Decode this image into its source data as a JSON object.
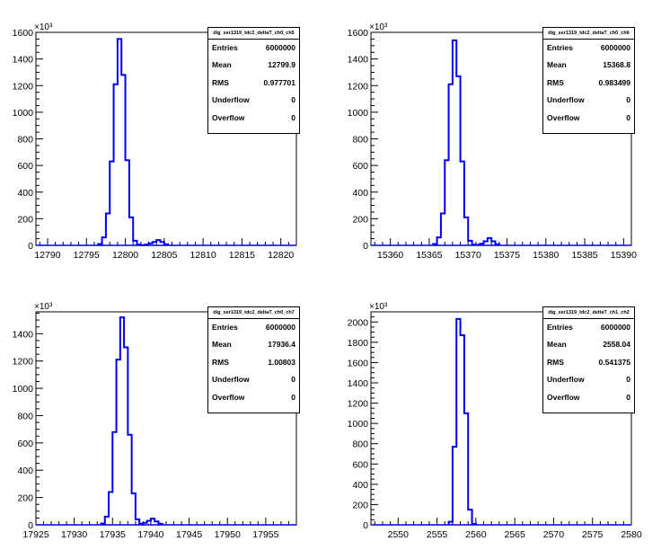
{
  "chart_data": [
    {
      "type": "histogram",
      "multiplier": "×10³",
      "x_range": [
        12788.5,
        12822
      ],
      "bin_width": 0.5,
      "y_range": [
        0,
        1600
      ],
      "x_ticks": [
        "12790",
        "12795",
        "12800",
        "12805",
        "12810",
        "12815",
        "12820"
      ],
      "x_tick_values": [
        12790,
        12795,
        12800,
        12805,
        12810,
        12815,
        12820
      ],
      "y_ticks": [
        "0",
        "200",
        "400",
        "600",
        "800",
        "1000",
        "1200",
        "1400",
        "1600"
      ],
      "y_tick_values": [
        0,
        200,
        400,
        600,
        800,
        1000,
        1200,
        1400,
        1600
      ],
      "bins": [
        [
          12796.5,
          10
        ],
        [
          12797,
          60
        ],
        [
          12797.5,
          240
        ],
        [
          12798,
          630
        ],
        [
          12798.5,
          1210
        ],
        [
          12799,
          1550
        ],
        [
          12799.5,
          1280
        ],
        [
          12800,
          640
        ],
        [
          12800.5,
          210
        ],
        [
          12801,
          35
        ],
        [
          12801.5,
          5
        ],
        [
          12802,
          2
        ],
        [
          12802.5,
          5
        ],
        [
          12803,
          15
        ],
        [
          12803.5,
          25
        ],
        [
          12804,
          40
        ],
        [
          12804.5,
          25
        ],
        [
          12805,
          8
        ]
      ],
      "stats": {
        "title": "dig_ser1319_tdc2_deltaT_ch0_ch5",
        "entries": "6000000",
        "mean": "12799.9",
        "rms": "0.977701",
        "underflow": "0",
        "overflow": "0"
      }
    },
    {
      "type": "histogram",
      "multiplier": "×10³",
      "x_range": [
        15357.5,
        15391
      ],
      "bin_width": 0.5,
      "y_range": [
        0,
        1600
      ],
      "x_ticks": [
        "15360",
        "15365",
        "15370",
        "15375",
        "15380",
        "15385",
        "15390"
      ],
      "x_tick_values": [
        15360,
        15365,
        15370,
        15375,
        15380,
        15385,
        15390
      ],
      "y_ticks": [
        "0",
        "200",
        "400",
        "600",
        "800",
        "1000",
        "1200",
        "1400",
        "1600"
      ],
      "y_tick_values": [
        0,
        200,
        400,
        600,
        800,
        1000,
        1200,
        1400,
        1600
      ],
      "bins": [
        [
          15365.5,
          10
        ],
        [
          15366,
          60
        ],
        [
          15366.5,
          240
        ],
        [
          15367,
          640
        ],
        [
          15367.5,
          1210
        ],
        [
          15368,
          1540
        ],
        [
          15368.5,
          1270
        ],
        [
          15369,
          630
        ],
        [
          15369.5,
          210
        ],
        [
          15370,
          35
        ],
        [
          15370.5,
          5
        ],
        [
          15371,
          3
        ],
        [
          15371.5,
          12
        ],
        [
          15372,
          30
        ],
        [
          15372.5,
          55
        ],
        [
          15373,
          30
        ],
        [
          15373.5,
          8
        ]
      ],
      "stats": {
        "title": "dig_ser1319_tdc2_deltaT_ch0_ch6",
        "entries": "6000000",
        "mean": "15368.8",
        "rms": "0.983499",
        "underflow": "0",
        "overflow": "0"
      }
    },
    {
      "type": "histogram",
      "multiplier": "×10³",
      "x_range": [
        17925,
        17959
      ],
      "bin_width": 0.5,
      "y_range": [
        0,
        1560
      ],
      "x_ticks": [
        "17925",
        "17930",
        "17935",
        "17940",
        "17945",
        "17950",
        "17955"
      ],
      "x_tick_values": [
        17925,
        17930,
        17935,
        17940,
        17945,
        17950,
        17955
      ],
      "y_ticks": [
        "0",
        "200",
        "400",
        "600",
        "800",
        "1000",
        "1200",
        "1400"
      ],
      "y_tick_values": [
        0,
        200,
        400,
        600,
        800,
        1000,
        1200,
        1400
      ],
      "bins": [
        [
          17933.5,
          10
        ],
        [
          17934,
          60
        ],
        [
          17934.5,
          240
        ],
        [
          17935,
          680
        ],
        [
          17935.5,
          1210
        ],
        [
          17936,
          1520
        ],
        [
          17936.5,
          1300
        ],
        [
          17937,
          660
        ],
        [
          17937.5,
          230
        ],
        [
          17938,
          40
        ],
        [
          17938.5,
          8
        ],
        [
          17939,
          15
        ],
        [
          17939.5,
          30
        ],
        [
          17940,
          45
        ],
        [
          17940.5,
          25
        ],
        [
          17941,
          8
        ]
      ],
      "stats": {
        "title": "dig_ser1319_tdc2_deltaT_ch0_ch7",
        "entries": "6000000",
        "mean": "17936.4",
        "rms": "1.00803",
        "underflow": "0",
        "overflow": "0"
      }
    },
    {
      "type": "histogram",
      "multiplier": "×10³",
      "x_range": [
        2546.5,
        2580
      ],
      "bin_width": 0.5,
      "y_range": [
        0,
        2100
      ],
      "x_ticks": [
        "2550",
        "2555",
        "2560",
        "2565",
        "2570",
        "2575",
        "2580"
      ],
      "x_tick_values": [
        2550,
        2555,
        2560,
        2565,
        2570,
        2575,
        2580
      ],
      "y_ticks": [
        "0",
        "200",
        "400",
        "600",
        "800",
        "1000",
        "1200",
        "1400",
        "1600",
        "1800",
        "2000"
      ],
      "y_tick_values": [
        0,
        200,
        400,
        600,
        800,
        1000,
        1200,
        1400,
        1600,
        1800,
        2000
      ],
      "bins": [
        [
          2556.5,
          30
        ],
        [
          2557,
          770
        ],
        [
          2557.5,
          2030
        ],
        [
          2558,
          1870
        ],
        [
          2558.5,
          1100
        ],
        [
          2559,
          150
        ],
        [
          2559.5,
          10
        ]
      ],
      "stats": {
        "title": "dig_ser1319_tdc2_deltaT_ch1_ch2",
        "entries": "6000000",
        "mean": "2558.04",
        "rms": "0.541375",
        "underflow": "0",
        "overflow": "0"
      }
    }
  ],
  "stat_labels": {
    "entries": "Entries",
    "mean": "Mean",
    "rms": "RMS",
    "underflow": "Underflow",
    "overflow": "Overflow"
  }
}
